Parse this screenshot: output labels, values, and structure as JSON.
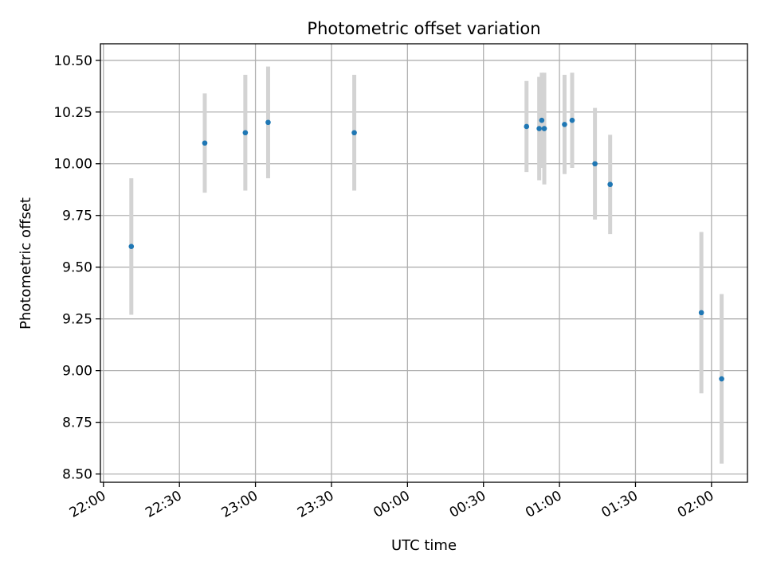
{
  "chart_data": {
    "type": "scatter",
    "title": "Photometric offset variation",
    "xlabel": "UTC time",
    "ylabel": "Photometric offset",
    "grid": true,
    "x_tick_labels": [
      "22:00",
      "22:30",
      "23:00",
      "23:30",
      "00:00",
      "00:30",
      "01:00",
      "01:30",
      "02:00"
    ],
    "y_tick_labels": [
      "8.50",
      "8.75",
      "9.00",
      "9.25",
      "9.50",
      "9.75",
      "10.00",
      "10.25",
      "10.50"
    ],
    "y_ticks": [
      8.5,
      8.75,
      9.0,
      9.25,
      9.5,
      9.75,
      10.0,
      10.25,
      10.5
    ],
    "ylim": [
      8.46,
      10.58
    ],
    "xlim_minutes_from_first_tick": [
      -1.2,
      254.2
    ],
    "point_color": "#1f77b4",
    "errorbar_color": "#d3d3d3",
    "grid_color": "#b0b0b0",
    "points": [
      {
        "x": "22:11",
        "y": 9.6,
        "err": 0.33
      },
      {
        "x": "22:40",
        "y": 10.1,
        "err": 0.24
      },
      {
        "x": "22:56",
        "y": 10.15,
        "err": 0.28
      },
      {
        "x": "23:05",
        "y": 10.2,
        "err": 0.27
      },
      {
        "x": "23:39",
        "y": 10.15,
        "err": 0.28
      },
      {
        "x": "00:47",
        "y": 10.18,
        "err": 0.22
      },
      {
        "x": "00:52",
        "y": 10.17,
        "err": 0.25
      },
      {
        "x": "00:53",
        "y": 10.21,
        "err": 0.23
      },
      {
        "x": "00:54",
        "y": 10.17,
        "err": 0.27
      },
      {
        "x": "01:02",
        "y": 10.19,
        "err": 0.24
      },
      {
        "x": "01:05",
        "y": 10.21,
        "err": 0.23
      },
      {
        "x": "01:14",
        "y": 10.0,
        "err": 0.27
      },
      {
        "x": "01:20",
        "y": 9.9,
        "err": 0.24
      },
      {
        "x": "01:56",
        "y": 9.28,
        "err": 0.39
      },
      {
        "x": "02:04",
        "y": 8.96,
        "err": 0.41
      }
    ]
  }
}
